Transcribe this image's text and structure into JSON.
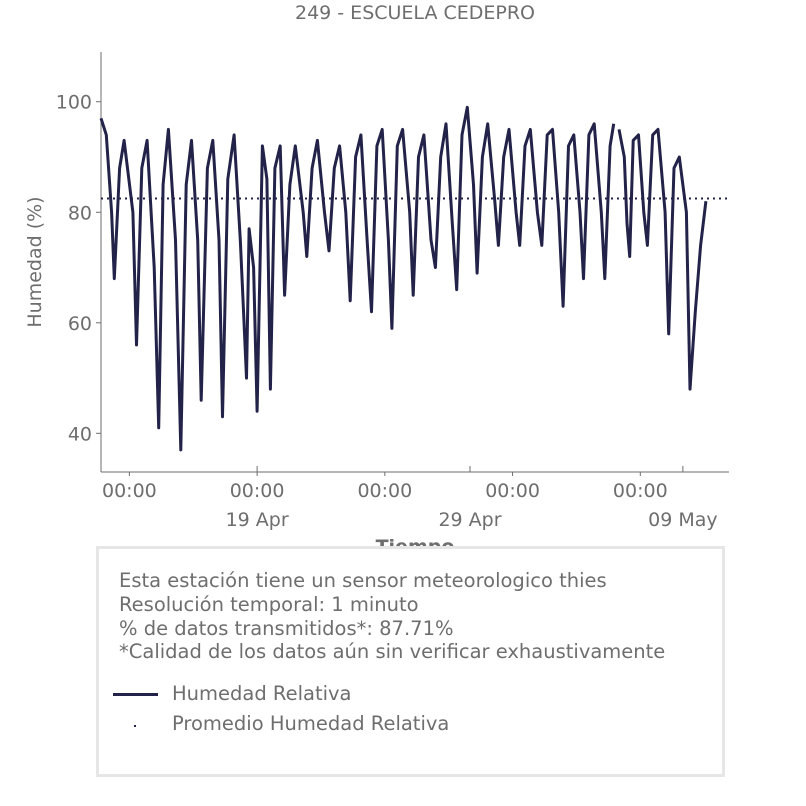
{
  "chart_data": {
    "type": "line",
    "title": "249 - ESCUELA CEDEPRO",
    "xlabel": "Tiempo",
    "ylabel": "Humedad (%)",
    "ylim": [
      33,
      109
    ],
    "y_ticks": [
      40,
      60,
      80,
      100
    ],
    "x_range": [
      "2021-04-11T16:00",
      "2021-05-11T04:00"
    ],
    "x_minor_ticks": [
      {
        "x": "2021-04-13T00:00",
        "label": "00:00"
      },
      {
        "x": "2021-04-19T00:00",
        "label": "00:00"
      },
      {
        "x": "2021-04-25T00:00",
        "label": "00:00"
      },
      {
        "x": "2021-05-01T00:00",
        "label": "00:00"
      },
      {
        "x": "2021-05-07T00:00",
        "label": "00:00"
      }
    ],
    "x_major_ticks": [
      {
        "x": "2021-04-19T00:00",
        "label": "19 Apr"
      },
      {
        "x": "2021-04-29T00:00",
        "label": "29 Apr"
      },
      {
        "x": "2021-05-09T00:00",
        "label": "09 May"
      }
    ],
    "grid": false,
    "series": [
      {
        "name": "Humedad Relativa",
        "style": "solid",
        "color": "#23234a",
        "points": [
          [
            "2021-04-11T16:00",
            97
          ],
          [
            "2021-04-11T22:00",
            94
          ],
          [
            "2021-04-12T04:00",
            80
          ],
          [
            "2021-04-12T07:00",
            68
          ],
          [
            "2021-04-12T13:00",
            88
          ],
          [
            "2021-04-12T18:00",
            93
          ],
          [
            "2021-04-13T04:00",
            80
          ],
          [
            "2021-04-13T08:00",
            56
          ],
          [
            "2021-04-13T14:00",
            88
          ],
          [
            "2021-04-13T20:00",
            93
          ],
          [
            "2021-04-14T04:00",
            70
          ],
          [
            "2021-04-14T09:00",
            41
          ],
          [
            "2021-04-14T14:00",
            85
          ],
          [
            "2021-04-14T20:00",
            95
          ],
          [
            "2021-04-15T04:00",
            75
          ],
          [
            "2021-04-15T10:00",
            37
          ],
          [
            "2021-04-15T16:00",
            85
          ],
          [
            "2021-04-15T22:00",
            93
          ],
          [
            "2021-04-16T05:00",
            75
          ],
          [
            "2021-04-16T09:00",
            46
          ],
          [
            "2021-04-16T16:00",
            88
          ],
          [
            "2021-04-16T22:00",
            93
          ],
          [
            "2021-04-17T05:00",
            75
          ],
          [
            "2021-04-17T09:00",
            43
          ],
          [
            "2021-04-17T15:00",
            86
          ],
          [
            "2021-04-17T22:00",
            94
          ],
          [
            "2021-04-18T05:00",
            75
          ],
          [
            "2021-04-18T09:00",
            61
          ],
          [
            "2021-04-18T12:00",
            50
          ],
          [
            "2021-04-18T15:00",
            77
          ],
          [
            "2021-04-18T20:00",
            70
          ],
          [
            "2021-04-19T00:00",
            44
          ],
          [
            "2021-04-19T06:00",
            92
          ],
          [
            "2021-04-19T11:00",
            86
          ],
          [
            "2021-04-19T15:00",
            48
          ],
          [
            "2021-04-19T20:00",
            88
          ],
          [
            "2021-04-20T02:00",
            92
          ],
          [
            "2021-04-20T07:00",
            65
          ],
          [
            "2021-04-20T13:00",
            85
          ],
          [
            "2021-04-20T19:00",
            92
          ],
          [
            "2021-04-21T04:00",
            80
          ],
          [
            "2021-04-21T08:00",
            72
          ],
          [
            "2021-04-21T14:00",
            88
          ],
          [
            "2021-04-21T20:00",
            93
          ],
          [
            "2021-04-22T04:00",
            80
          ],
          [
            "2021-04-22T09:00",
            73
          ],
          [
            "2021-04-22T15:00",
            88
          ],
          [
            "2021-04-22T21:00",
            92
          ],
          [
            "2021-04-23T04:00",
            80
          ],
          [
            "2021-04-23T09:00",
            64
          ],
          [
            "2021-04-23T15:00",
            90
          ],
          [
            "2021-04-23T21:00",
            94
          ],
          [
            "2021-04-24T04:00",
            75
          ],
          [
            "2021-04-24T09:00",
            62
          ],
          [
            "2021-04-24T15:00",
            92
          ],
          [
            "2021-04-24T21:00",
            95
          ],
          [
            "2021-04-25T04:00",
            75
          ],
          [
            "2021-04-25T08:00",
            59
          ],
          [
            "2021-04-25T14:00",
            92
          ],
          [
            "2021-04-25T20:00",
            95
          ],
          [
            "2021-04-26T04:00",
            80
          ],
          [
            "2021-04-26T08:00",
            65
          ],
          [
            "2021-04-26T14:00",
            90
          ],
          [
            "2021-04-26T20:00",
            94
          ],
          [
            "2021-04-27T04:00",
            75
          ],
          [
            "2021-04-27T09:00",
            70
          ],
          [
            "2021-04-27T15:00",
            90
          ],
          [
            "2021-04-27T21:00",
            96
          ],
          [
            "2021-04-28T04:00",
            78
          ],
          [
            "2021-04-28T09:00",
            66
          ],
          [
            "2021-04-28T15:00",
            94
          ],
          [
            "2021-04-28T21:00",
            99
          ],
          [
            "2021-04-29T04:00",
            85
          ],
          [
            "2021-04-29T08:00",
            69
          ],
          [
            "2021-04-29T14:00",
            90
          ],
          [
            "2021-04-29T20:00",
            96
          ],
          [
            "2021-04-30T04:00",
            82
          ],
          [
            "2021-04-30T08:00",
            74
          ],
          [
            "2021-04-30T14:00",
            90
          ],
          [
            "2021-04-30T20:00",
            95
          ],
          [
            "2021-05-01T04:00",
            80
          ],
          [
            "2021-05-01T08:00",
            74
          ],
          [
            "2021-05-01T14:00",
            92
          ],
          [
            "2021-05-01T20:00",
            95
          ],
          [
            "2021-05-02T04:00",
            80
          ],
          [
            "2021-05-02T09:00",
            74
          ],
          [
            "2021-05-02T15:00",
            94
          ],
          [
            "2021-05-02T21:00",
            95
          ],
          [
            "2021-05-03T04:00",
            80
          ],
          [
            "2021-05-03T09:00",
            63
          ],
          [
            "2021-05-03T15:00",
            92
          ],
          [
            "2021-05-03T21:00",
            94
          ],
          [
            "2021-05-04T04:00",
            80
          ],
          [
            "2021-05-04T08:00",
            68
          ],
          [
            "2021-05-04T14:00",
            94
          ],
          [
            "2021-05-04T20:00",
            96
          ],
          [
            "2021-05-05T04:00",
            80
          ],
          [
            "2021-05-05T08:00",
            68
          ],
          [
            "2021-05-05T14:00",
            92
          ],
          [
            "2021-05-05T18:00",
            96
          ]
        ],
        "points_segment_2": [
          [
            "2021-05-06T00:00",
            95
          ],
          [
            "2021-05-06T06:00",
            90
          ],
          [
            "2021-05-06T09:00",
            78
          ],
          [
            "2021-05-06T12:00",
            72
          ],
          [
            "2021-05-06T16:00",
            93
          ],
          [
            "2021-05-06T22:00",
            94
          ],
          [
            "2021-05-07T04:00",
            80
          ],
          [
            "2021-05-07T08:00",
            74
          ],
          [
            "2021-05-07T14:00",
            94
          ],
          [
            "2021-05-07T20:00",
            95
          ],
          [
            "2021-05-08T04:00",
            80
          ],
          [
            "2021-05-08T08:00",
            58
          ],
          [
            "2021-05-08T14:00",
            88
          ],
          [
            "2021-05-08T20:00",
            90
          ],
          [
            "2021-05-09T04:00",
            80
          ],
          [
            "2021-05-09T08:00",
            48
          ],
          [
            "2021-05-09T14:00",
            62
          ],
          [
            "2021-05-09T20:00",
            74
          ],
          [
            "2021-05-10T02:00",
            82
          ]
        ]
      },
      {
        "name": "Promedio Humedad Relativa",
        "style": "dotted",
        "color": "#23234a",
        "value": 82.5
      }
    ]
  },
  "info": {
    "lines": [
      "Esta estación tiene un sensor meteorologico thies",
      "Resolución temporal: 1 minuto",
      "% de datos transmitidos*: 87.71%",
      "*Calidad de los datos aún sin verificar exhaustivamente"
    ]
  },
  "legend": {
    "items": [
      {
        "label": "Humedad Relativa"
      },
      {
        "label": "Promedio Humedad Relativa"
      }
    ]
  }
}
